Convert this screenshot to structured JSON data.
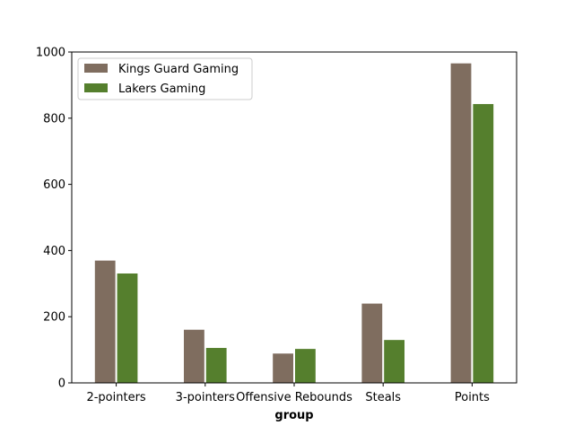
{
  "chart_data": {
    "type": "bar",
    "title": "",
    "xlabel": "group",
    "ylabel": "",
    "categories": [
      "2-pointers",
      "3-pointers",
      "Offensive Rebounds",
      "Steals",
      "Points"
    ],
    "series": [
      {
        "name": "Kings Guard Gaming",
        "color": "#7f6d5f",
        "values": [
          371,
          162,
          90,
          241,
          967
        ]
      },
      {
        "name": "Lakers Gaming",
        "color": "#557f2d",
        "values": [
          332,
          107,
          104,
          131,
          844
        ]
      }
    ],
    "ylim": [
      0,
      1000
    ],
    "yticks": [
      0,
      200,
      400,
      600,
      800,
      1000
    ],
    "legend_position": "upper-left",
    "grid": false
  }
}
